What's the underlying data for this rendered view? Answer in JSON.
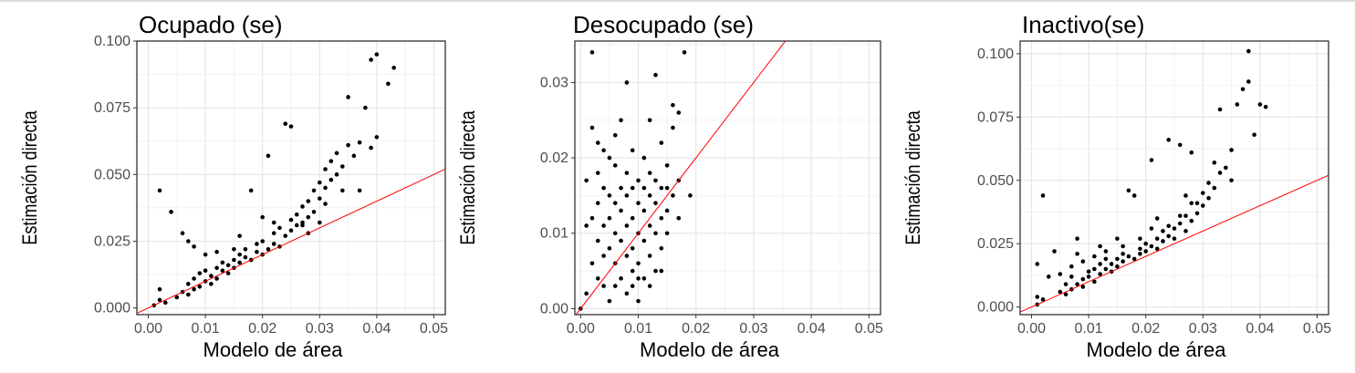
{
  "chart_data": [
    {
      "type": "scatter",
      "title": "Ocupado (se)",
      "xlabel": "Modelo de área",
      "ylabel": "Estimación directa",
      "xlim": [
        -0.002,
        0.052
      ],
      "ylim": [
        -0.0025,
        0.1
      ],
      "xticks": [
        "0.00",
        "0.01",
        "0.02",
        "0.03",
        "0.04",
        "0.05"
      ],
      "yticks": [
        "0.000",
        "0.025",
        "0.050",
        "0.075",
        "0.100"
      ],
      "xtick_values": [
        0,
        0.01,
        0.02,
        0.03,
        0.04,
        0.05
      ],
      "ytick_values": [
        0,
        0.025,
        0.05,
        0.075,
        0.1
      ],
      "grid": true,
      "reference_line": {
        "intercept": 0,
        "slope": 1,
        "color": "#ff0000"
      },
      "points": [
        [
          0.001,
          0.001
        ],
        [
          0.002,
          0.003
        ],
        [
          0.002,
          0.007
        ],
        [
          0.003,
          0.002
        ],
        [
          0.002,
          0.044
        ],
        [
          0.004,
          0.036
        ],
        [
          0.006,
          0.028
        ],
        [
          0.005,
          0.004
        ],
        [
          0.006,
          0.006
        ],
        [
          0.007,
          0.005
        ],
        [
          0.007,
          0.009
        ],
        [
          0.008,
          0.007
        ],
        [
          0.008,
          0.011
        ],
        [
          0.009,
          0.008
        ],
        [
          0.009,
          0.013
        ],
        [
          0.01,
          0.01
        ],
        [
          0.01,
          0.014
        ],
        [
          0.011,
          0.009
        ],
        [
          0.011,
          0.012
        ],
        [
          0.012,
          0.015
        ],
        [
          0.012,
          0.011
        ],
        [
          0.013,
          0.014
        ],
        [
          0.013,
          0.017
        ],
        [
          0.014,
          0.013
        ],
        [
          0.014,
          0.016
        ],
        [
          0.015,
          0.018
        ],
        [
          0.015,
          0.015
        ],
        [
          0.016,
          0.02
        ],
        [
          0.016,
          0.017
        ],
        [
          0.017,
          0.019
        ],
        [
          0.017,
          0.022
        ],
        [
          0.018,
          0.018
        ],
        [
          0.018,
          0.044
        ],
        [
          0.019,
          0.021
        ],
        [
          0.019,
          0.024
        ],
        [
          0.02,
          0.02
        ],
        [
          0.02,
          0.025
        ],
        [
          0.021,
          0.022
        ],
        [
          0.021,
          0.057
        ],
        [
          0.022,
          0.024
        ],
        [
          0.022,
          0.028
        ],
        [
          0.023,
          0.023
        ],
        [
          0.023,
          0.03
        ],
        [
          0.024,
          0.027
        ],
        [
          0.024,
          0.069
        ],
        [
          0.025,
          0.029
        ],
        [
          0.025,
          0.033
        ],
        [
          0.025,
          0.068
        ],
        [
          0.026,
          0.031
        ],
        [
          0.026,
          0.035
        ],
        [
          0.027,
          0.032
        ],
        [
          0.027,
          0.038
        ],
        [
          0.028,
          0.034
        ],
        [
          0.028,
          0.04
        ],
        [
          0.029,
          0.036
        ],
        [
          0.029,
          0.044
        ],
        [
          0.03,
          0.041
        ],
        [
          0.03,
          0.047
        ],
        [
          0.031,
          0.045
        ],
        [
          0.031,
          0.052
        ],
        [
          0.032,
          0.048
        ],
        [
          0.032,
          0.055
        ],
        [
          0.033,
          0.05
        ],
        [
          0.033,
          0.058
        ],
        [
          0.034,
          0.053
        ],
        [
          0.034,
          0.044
        ],
        [
          0.035,
          0.079
        ],
        [
          0.035,
          0.061
        ],
        [
          0.036,
          0.057
        ],
        [
          0.037,
          0.062
        ],
        [
          0.037,
          0.044
        ],
        [
          0.038,
          0.075
        ],
        [
          0.039,
          0.06
        ],
        [
          0.039,
          0.093
        ],
        [
          0.04,
          0.095
        ],
        [
          0.04,
          0.064
        ],
        [
          0.042,
          0.084
        ],
        [
          0.043,
          0.09
        ],
        [
          0.007,
          0.025
        ],
        [
          0.008,
          0.023
        ],
        [
          0.01,
          0.02
        ],
        [
          0.012,
          0.021
        ],
        [
          0.015,
          0.022
        ],
        [
          0.016,
          0.027
        ],
        [
          0.02,
          0.034
        ],
        [
          0.022,
          0.032
        ],
        [
          0.027,
          0.031
        ],
        [
          0.028,
          0.028
        ],
        [
          0.03,
          0.032
        ],
        [
          0.031,
          0.039
        ]
      ]
    },
    {
      "type": "scatter",
      "title": "Desocupado (se)",
      "xlabel": "Modelo de área",
      "ylabel": "Estimación directa",
      "xlim": [
        -0.001,
        0.052
      ],
      "ylim": [
        -0.0008,
        0.0355
      ],
      "xticks": [
        "0.00",
        "0.01",
        "0.02",
        "0.03",
        "0.04",
        "0.05"
      ],
      "yticks": [
        "0.00",
        "0.01",
        "0.02",
        "0.03"
      ],
      "xtick_values": [
        0,
        0.01,
        0.02,
        0.03,
        0.04,
        0.05
      ],
      "ytick_values": [
        0,
        0.01,
        0.02,
        0.03
      ],
      "grid": true,
      "reference_line": {
        "intercept": 0,
        "slope": 1,
        "color": "#ff0000"
      },
      "points": [
        [
          0.0,
          0.0
        ],
        [
          0.001,
          0.002
        ],
        [
          0.001,
          0.017
        ],
        [
          0.001,
          0.011
        ],
        [
          0.002,
          0.034
        ],
        [
          0.002,
          0.024
        ],
        [
          0.002,
          0.006
        ],
        [
          0.003,
          0.004
        ],
        [
          0.003,
          0.009
        ],
        [
          0.003,
          0.014
        ],
        [
          0.003,
          0.018
        ],
        [
          0.004,
          0.007
        ],
        [
          0.004,
          0.011
        ],
        [
          0.004,
          0.003
        ],
        [
          0.004,
          0.021
        ],
        [
          0.005,
          0.008
        ],
        [
          0.005,
          0.012
        ],
        [
          0.005,
          0.015
        ],
        [
          0.005,
          0.001
        ],
        [
          0.006,
          0.006
        ],
        [
          0.006,
          0.01
        ],
        [
          0.006,
          0.019
        ],
        [
          0.006,
          0.023
        ],
        [
          0.007,
          0.004
        ],
        [
          0.007,
          0.009
        ],
        [
          0.007,
          0.013
        ],
        [
          0.007,
          0.016
        ],
        [
          0.007,
          0.025
        ],
        [
          0.008,
          0.007
        ],
        [
          0.008,
          0.011
        ],
        [
          0.008,
          0.002
        ],
        [
          0.008,
          0.018
        ],
        [
          0.008,
          0.03
        ],
        [
          0.009,
          0.008
        ],
        [
          0.009,
          0.012
        ],
        [
          0.009,
          0.005
        ],
        [
          0.009,
          0.021
        ],
        [
          0.01,
          0.01
        ],
        [
          0.01,
          0.014
        ],
        [
          0.01,
          0.006
        ],
        [
          0.01,
          0.017
        ],
        [
          0.01,
          0.001
        ],
        [
          0.011,
          0.009
        ],
        [
          0.011,
          0.013
        ],
        [
          0.011,
          0.004
        ],
        [
          0.011,
          0.02
        ],
        [
          0.012,
          0.011
        ],
        [
          0.012,
          0.007
        ],
        [
          0.012,
          0.015
        ],
        [
          0.012,
          0.018
        ],
        [
          0.012,
          0.025
        ],
        [
          0.013,
          0.01
        ],
        [
          0.013,
          0.014
        ],
        [
          0.013,
          0.005
        ],
        [
          0.013,
          0.031
        ],
        [
          0.014,
          0.012
        ],
        [
          0.014,
          0.016
        ],
        [
          0.014,
          0.008
        ],
        [
          0.014,
          0.022
        ],
        [
          0.015,
          0.013
        ],
        [
          0.015,
          0.019
        ],
        [
          0.015,
          0.01
        ],
        [
          0.016,
          0.024
        ],
        [
          0.016,
          0.027
        ],
        [
          0.016,
          0.015
        ],
        [
          0.017,
          0.026
        ],
        [
          0.017,
          0.012
        ],
        [
          0.017,
          0.017
        ],
        [
          0.018,
          0.034
        ],
        [
          0.019,
          0.015
        ],
        [
          0.002,
          0.012
        ],
        [
          0.003,
          0.022
        ],
        [
          0.004,
          0.016
        ],
        [
          0.005,
          0.02
        ],
        [
          0.006,
          0.014
        ],
        [
          0.008,
          0.015
        ],
        [
          0.009,
          0.016
        ],
        [
          0.011,
          0.016
        ],
        [
          0.013,
          0.017
        ],
        [
          0.015,
          0.016
        ],
        [
          0.009,
          0.003
        ],
        [
          0.01,
          0.004
        ],
        [
          0.006,
          0.003
        ],
        [
          0.012,
          0.003
        ],
        [
          0.014,
          0.005
        ]
      ]
    },
    {
      "type": "scatter",
      "title": "Inactivo(se)",
      "xlabel": "Modelo de área",
      "ylabel": "Estimación directa",
      "xlim": [
        -0.002,
        0.052
      ],
      "ylim": [
        -0.003,
        0.105
      ],
      "xticks": [
        "0.00",
        "0.01",
        "0.02",
        "0.03",
        "0.04",
        "0.05"
      ],
      "yticks": [
        "0.000",
        "0.025",
        "0.050",
        "0.075",
        "0.100"
      ],
      "xtick_values": [
        0,
        0.01,
        0.02,
        0.03,
        0.04,
        0.05
      ],
      "ytick_values": [
        0,
        0.025,
        0.05,
        0.075,
        0.1
      ],
      "grid": true,
      "reference_line": {
        "intercept": 0,
        "slope": 1,
        "color": "#ff0000"
      },
      "points": [
        [
          0.001,
          0.001
        ],
        [
          0.001,
          0.004
        ],
        [
          0.001,
          0.017
        ],
        [
          0.002,
          0.044
        ],
        [
          0.002,
          0.003
        ],
        [
          0.003,
          0.012
        ],
        [
          0.004,
          0.022
        ],
        [
          0.005,
          0.006
        ],
        [
          0.006,
          0.005
        ],
        [
          0.006,
          0.009
        ],
        [
          0.007,
          0.007
        ],
        [
          0.007,
          0.012
        ],
        [
          0.008,
          0.027
        ],
        [
          0.008,
          0.009
        ],
        [
          0.009,
          0.011
        ],
        [
          0.009,
          0.008
        ],
        [
          0.01,
          0.012
        ],
        [
          0.01,
          0.014
        ],
        [
          0.011,
          0.01
        ],
        [
          0.011,
          0.015
        ],
        [
          0.012,
          0.013
        ],
        [
          0.012,
          0.017
        ],
        [
          0.013,
          0.015
        ],
        [
          0.013,
          0.019
        ],
        [
          0.014,
          0.014
        ],
        [
          0.014,
          0.017
        ],
        [
          0.015,
          0.019
        ],
        [
          0.015,
          0.016
        ],
        [
          0.016,
          0.021
        ],
        [
          0.016,
          0.018
        ],
        [
          0.017,
          0.02
        ],
        [
          0.017,
          0.046
        ],
        [
          0.018,
          0.019
        ],
        [
          0.018,
          0.044
        ],
        [
          0.019,
          0.023
        ],
        [
          0.019,
          0.021
        ],
        [
          0.02,
          0.025
        ],
        [
          0.02,
          0.022
        ],
        [
          0.021,
          0.058
        ],
        [
          0.021,
          0.024
        ],
        [
          0.022,
          0.027
        ],
        [
          0.022,
          0.023
        ],
        [
          0.023,
          0.026
        ],
        [
          0.023,
          0.03
        ],
        [
          0.024,
          0.028
        ],
        [
          0.024,
          0.066
        ],
        [
          0.025,
          0.031
        ],
        [
          0.025,
          0.027
        ],
        [
          0.026,
          0.033
        ],
        [
          0.026,
          0.064
        ],
        [
          0.027,
          0.03
        ],
        [
          0.027,
          0.036
        ],
        [
          0.028,
          0.034
        ],
        [
          0.028,
          0.041
        ],
        [
          0.028,
          0.061
        ],
        [
          0.029,
          0.037
        ],
        [
          0.03,
          0.04
        ],
        [
          0.03,
          0.045
        ],
        [
          0.031,
          0.043
        ],
        [
          0.031,
          0.049
        ],
        [
          0.032,
          0.047
        ],
        [
          0.032,
          0.057
        ],
        [
          0.033,
          0.053
        ],
        [
          0.033,
          0.078
        ],
        [
          0.034,
          0.055
        ],
        [
          0.035,
          0.062
        ],
        [
          0.035,
          0.05
        ],
        [
          0.036,
          0.08
        ],
        [
          0.037,
          0.086
        ],
        [
          0.038,
          0.089
        ],
        [
          0.038,
          0.101
        ],
        [
          0.039,
          0.068
        ],
        [
          0.04,
          0.08
        ],
        [
          0.041,
          0.079
        ],
        [
          0.008,
          0.021
        ],
        [
          0.009,
          0.018
        ],
        [
          0.011,
          0.02
        ],
        [
          0.013,
          0.022
        ],
        [
          0.016,
          0.024
        ],
        [
          0.019,
          0.027
        ],
        [
          0.021,
          0.031
        ],
        [
          0.024,
          0.032
        ],
        [
          0.026,
          0.036
        ],
        [
          0.029,
          0.041
        ],
        [
          0.005,
          0.013
        ],
        [
          0.007,
          0.016
        ],
        [
          0.012,
          0.024
        ],
        [
          0.015,
          0.027
        ],
        [
          0.022,
          0.035
        ],
        [
          0.027,
          0.044
        ]
      ]
    }
  ]
}
